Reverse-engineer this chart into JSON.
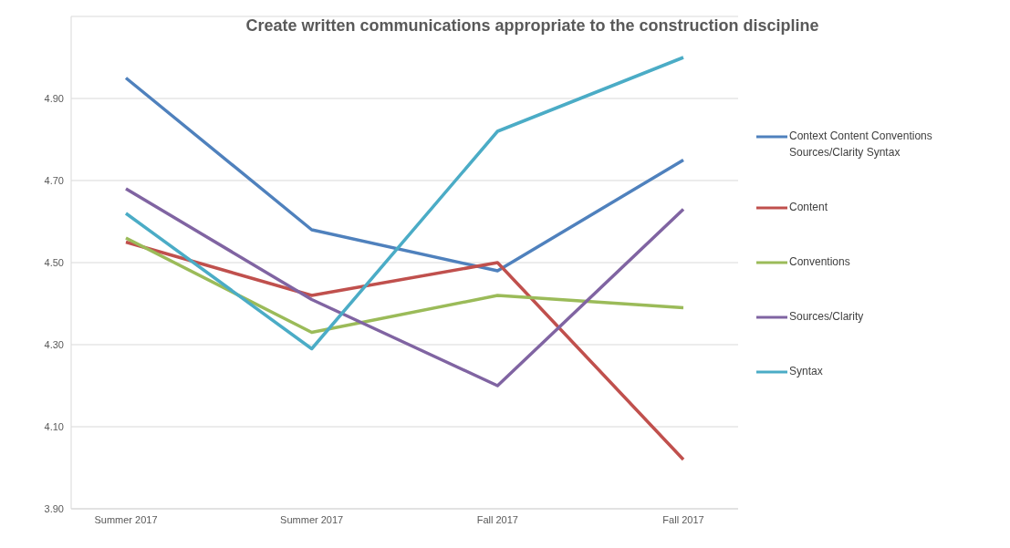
{
  "chart_data": {
    "type": "line",
    "title": "Create written communications appropriate to the construction discipline",
    "categories": [
      "Summer 2017",
      "Summer 2017",
      "Fall 2017",
      "Fall 2017"
    ],
    "series": [
      {
        "name": "Context Content Conventions Sources/Clarity Syntax",
        "color": "#4f81bd",
        "values": [
          4.95,
          4.58,
          4.48,
          4.75
        ]
      },
      {
        "name": "Content",
        "color": "#c0504d",
        "values": [
          4.55,
          4.42,
          4.5,
          4.02
        ]
      },
      {
        "name": "Conventions",
        "color": "#9bbb59",
        "values": [
          4.56,
          4.33,
          4.42,
          4.39
        ]
      },
      {
        "name": "Sources/Clarity",
        "color": "#8064a2",
        "values": [
          4.68,
          4.41,
          4.2,
          4.63
        ]
      },
      {
        "name": "Syntax",
        "color": "#4bacc6",
        "values": [
          4.62,
          4.29,
          4.82,
          5.0
        ]
      }
    ],
    "ylim": [
      3.9,
      5.1
    ],
    "yticks": [
      {
        "value": 3.9,
        "label": "3.90"
      },
      {
        "value": 4.1,
        "label": "4.10"
      },
      {
        "value": 4.3,
        "label": "4.30"
      },
      {
        "value": 4.5,
        "label": "4.50"
      },
      {
        "value": 4.7,
        "label": "4.70"
      },
      {
        "value": 4.9,
        "label": "4.90"
      }
    ],
    "grid": "y",
    "legend": "right",
    "marker": "none",
    "line_style": "solid"
  }
}
